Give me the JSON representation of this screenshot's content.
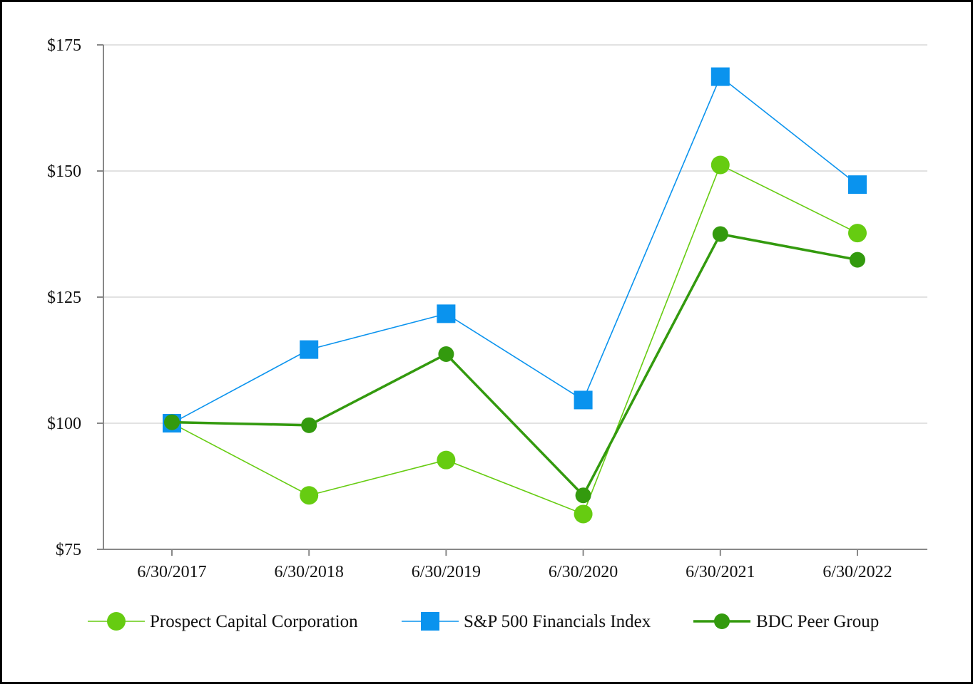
{
  "chart_data": {
    "type": "line",
    "categories": [
      "6/30/2017",
      "6/30/2018",
      "6/30/2019",
      "6/30/2020",
      "6/30/2021",
      "6/30/2022"
    ],
    "y_ticks": [
      "$75",
      "$100",
      "$125",
      "$150",
      "$175"
    ],
    "y_tick_values": [
      75,
      100,
      125,
      150,
      175
    ],
    "ylim": [
      75,
      175
    ],
    "grid": true,
    "legend_position": "bottom",
    "series": [
      {
        "name": "Prospect Capital Corporation",
        "values": [
          100,
          85.7,
          92.7,
          82.0,
          151.2,
          137.7
        ],
        "color": "#66cc11",
        "marker": "circle",
        "line_style": "thin"
      },
      {
        "name": "S&P 500 Financials Index",
        "values": [
          100,
          114.6,
          121.7,
          104.6,
          168.7,
          147.3
        ],
        "color": "#0a93ee",
        "marker": "square",
        "line_style": "thin"
      },
      {
        "name": "BDC Peer Group",
        "values": [
          100.2,
          99.6,
          113.7,
          85.7,
          137.5,
          132.4
        ],
        "color": "#339a0e",
        "marker": "circle",
        "line_style": "thick"
      }
    ]
  }
}
